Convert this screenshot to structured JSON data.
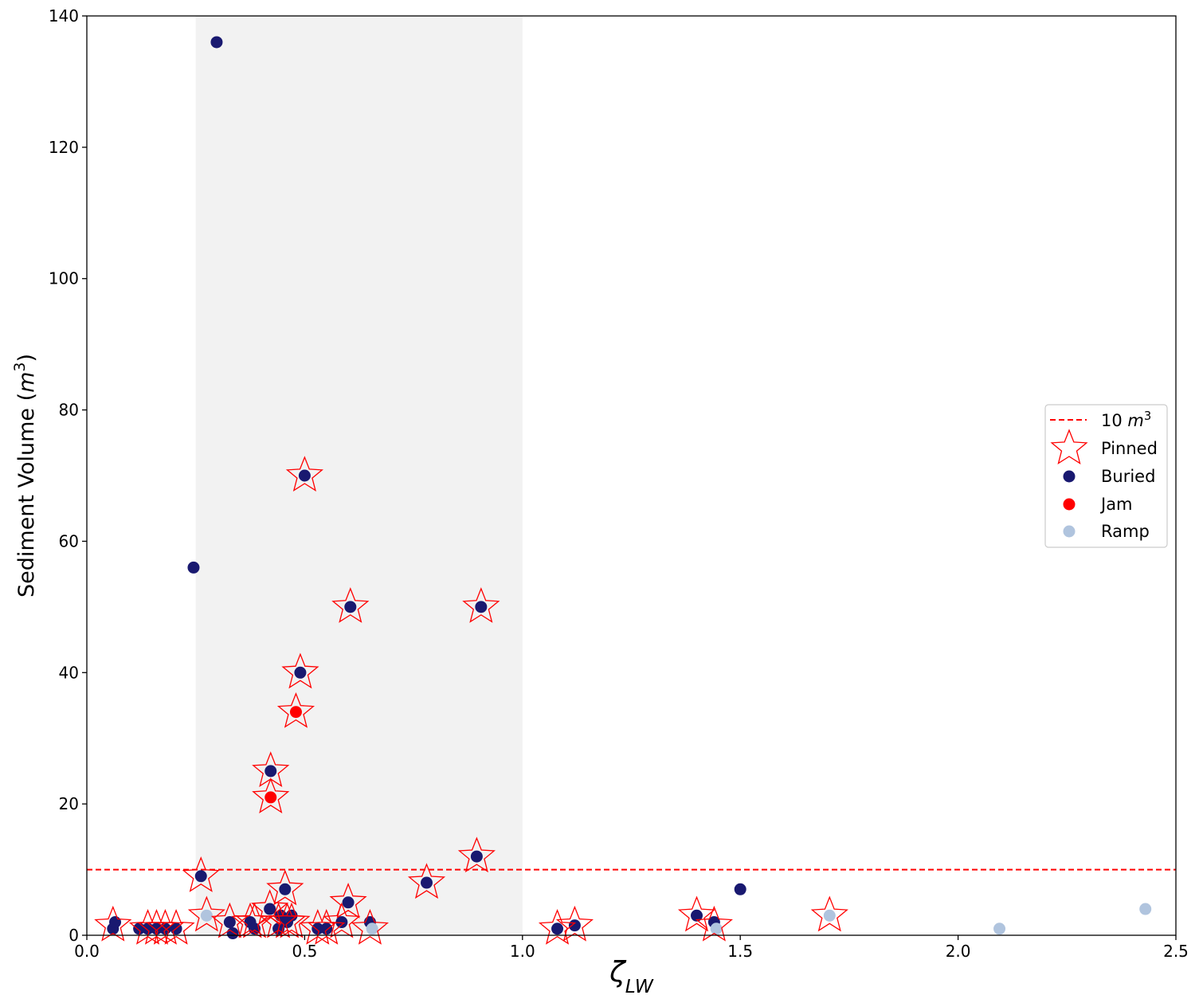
{
  "chart_data": {
    "type": "scatter",
    "xlabel": "ζ_LW",
    "ylabel": "Sediment Volume (m^3)",
    "xlim": [
      0.0,
      2.5
    ],
    "ylim": [
      0,
      140
    ],
    "x_ticks": [
      "0.0",
      "0.5",
      "1.0",
      "1.5",
      "2.0",
      "2.5"
    ],
    "y_ticks": [
      "0",
      "20",
      "40",
      "60",
      "80",
      "100",
      "120",
      "140"
    ],
    "grid": false,
    "legend_position": "center-right",
    "shaded_region": {
      "x_start": 0.25,
      "x_end": 1.0,
      "color": "#f2f2f2"
    },
    "reference_line": {
      "y": 10,
      "label": "10 m^3",
      "color": "#ff0000",
      "style": "dashed"
    },
    "legend": [
      "10 m^3",
      "Pinned",
      "Buried",
      "Jam",
      "Ramp"
    ],
    "colors": {
      "Buried": "#191970",
      "Jam": "#ff0000",
      "Ramp": "#b0c4de",
      "Pinned": "#ff0000"
    },
    "series": [
      {
        "name": "Buried",
        "points": [
          [
            0.06,
            1
          ],
          [
            0.065,
            2
          ],
          [
            0.12,
            1
          ],
          [
            0.14,
            1
          ],
          [
            0.16,
            1
          ],
          [
            0.18,
            1
          ],
          [
            0.205,
            1
          ],
          [
            0.245,
            56
          ],
          [
            0.262,
            9
          ],
          [
            0.298,
            136
          ],
          [
            0.328,
            2
          ],
          [
            0.335,
            0.3
          ],
          [
            0.375,
            2
          ],
          [
            0.385,
            1
          ],
          [
            0.42,
            4
          ],
          [
            0.422,
            25
          ],
          [
            0.44,
            1
          ],
          [
            0.445,
            3
          ],
          [
            0.455,
            7
          ],
          [
            0.46,
            2
          ],
          [
            0.47,
            3
          ],
          [
            0.49,
            40
          ],
          [
            0.5,
            70
          ],
          [
            0.53,
            1
          ],
          [
            0.55,
            1
          ],
          [
            0.585,
            2
          ],
          [
            0.6,
            5
          ],
          [
            0.605,
            50
          ],
          [
            0.65,
            2
          ],
          [
            0.78,
            8
          ],
          [
            0.895,
            12
          ],
          [
            0.905,
            50
          ],
          [
            1.08,
            1
          ],
          [
            1.12,
            1.5
          ],
          [
            1.4,
            3
          ],
          [
            1.44,
            2
          ],
          [
            1.5,
            7
          ]
        ]
      },
      {
        "name": "Jam",
        "points": [
          [
            0.422,
            21
          ],
          [
            0.48,
            34
          ]
        ]
      },
      {
        "name": "Ramp",
        "points": [
          [
            0.275,
            3
          ],
          [
            0.655,
            1
          ],
          [
            1.445,
            1
          ],
          [
            1.705,
            3
          ],
          [
            2.095,
            1
          ],
          [
            2.43,
            4
          ]
        ]
      },
      {
        "name": "Pinned",
        "points": [
          [
            0.06,
            1.5
          ],
          [
            0.14,
            1
          ],
          [
            0.16,
            1
          ],
          [
            0.18,
            1
          ],
          [
            0.205,
            1
          ],
          [
            0.262,
            9
          ],
          [
            0.275,
            3
          ],
          [
            0.328,
            2
          ],
          [
            0.375,
            2
          ],
          [
            0.385,
            2
          ],
          [
            0.42,
            4
          ],
          [
            0.422,
            25
          ],
          [
            0.422,
            21
          ],
          [
            0.44,
            2
          ],
          [
            0.455,
            7
          ],
          [
            0.46,
            2
          ],
          [
            0.47,
            2
          ],
          [
            0.48,
            34
          ],
          [
            0.49,
            40
          ],
          [
            0.5,
            70
          ],
          [
            0.53,
            1
          ],
          [
            0.55,
            1
          ],
          [
            0.585,
            2
          ],
          [
            0.6,
            5
          ],
          [
            0.605,
            50
          ],
          [
            0.65,
            1
          ],
          [
            0.78,
            8
          ],
          [
            0.895,
            12
          ],
          [
            0.905,
            50
          ],
          [
            1.08,
            1
          ],
          [
            1.12,
            1.5
          ],
          [
            1.4,
            3
          ],
          [
            1.44,
            1.5
          ],
          [
            1.705,
            3
          ]
        ]
      }
    ]
  }
}
